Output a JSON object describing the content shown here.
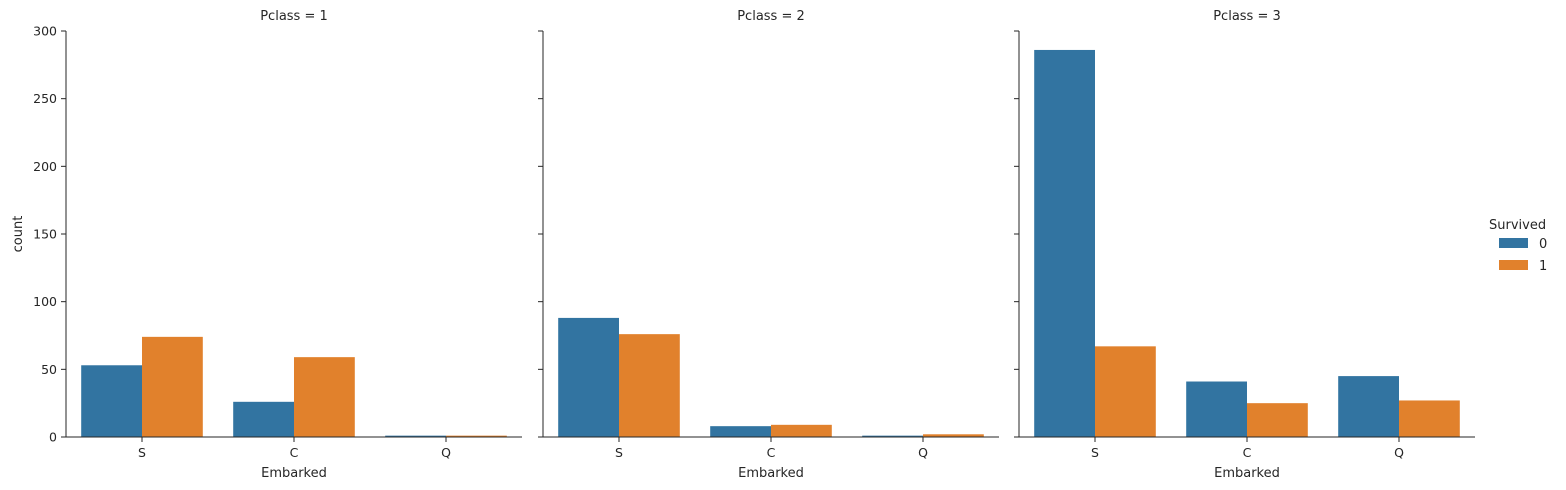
{
  "chart_data": {
    "type": "bar",
    "x_label": "Embarked",
    "y_label": "count",
    "ylim": [
      0,
      300
    ],
    "yticks": [
      0,
      50,
      100,
      150,
      200,
      250,
      300
    ],
    "categories": [
      "S",
      "C",
      "Q"
    ],
    "hue_title": "Survived",
    "hue_levels": [
      {
        "name": "0",
        "color": "#3274a1"
      },
      {
        "name": "1",
        "color": "#e1812c"
      }
    ],
    "legend_position": "right",
    "grid": false,
    "panels": [
      {
        "title": "Pclass = 1",
        "series": [
          {
            "name": "0",
            "values": [
              53,
              26,
              1
            ]
          },
          {
            "name": "1",
            "values": [
              74,
              59,
              1
            ]
          }
        ]
      },
      {
        "title": "Pclass = 2",
        "series": [
          {
            "name": "0",
            "values": [
              88,
              8,
              1
            ]
          },
          {
            "name": "1",
            "values": [
              76,
              9,
              2
            ]
          }
        ]
      },
      {
        "title": "Pclass = 3",
        "series": [
          {
            "name": "0",
            "values": [
              286,
              41,
              45
            ]
          },
          {
            "name": "1",
            "values": [
              67,
              25,
              27
            ]
          }
        ]
      }
    ]
  }
}
